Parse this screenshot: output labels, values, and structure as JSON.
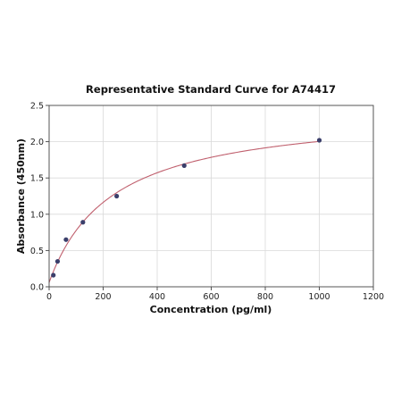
{
  "chart_data": {
    "type": "scatter",
    "title": "Representative Standard Curve for A74417",
    "xlabel": "Concentration (pg/ml)",
    "ylabel": "Absorbance (450nm)",
    "xlim": [
      0,
      1200
    ],
    "ylim": [
      0,
      2.5
    ],
    "xticks": [
      "0",
      "200",
      "400",
      "600",
      "800",
      "1000",
      "1200"
    ],
    "yticks": [
      "0.0",
      "0.5",
      "1.0",
      "1.5",
      "2.0",
      "2.5"
    ],
    "grid": true,
    "series": [
      {
        "points": [
          {
            "x": 15.6,
            "y": 0.16
          },
          {
            "x": 31.25,
            "y": 0.35
          },
          {
            "x": 62.5,
            "y": 0.65
          },
          {
            "x": 125,
            "y": 0.89
          },
          {
            "x": 250,
            "y": 1.25
          },
          {
            "x": 500,
            "y": 1.67
          },
          {
            "x": 1000,
            "y": 2.02
          }
        ],
        "fit_curve": true,
        "point_color": "#3b3f6b",
        "curve_color": "#c0606e"
      }
    ]
  }
}
